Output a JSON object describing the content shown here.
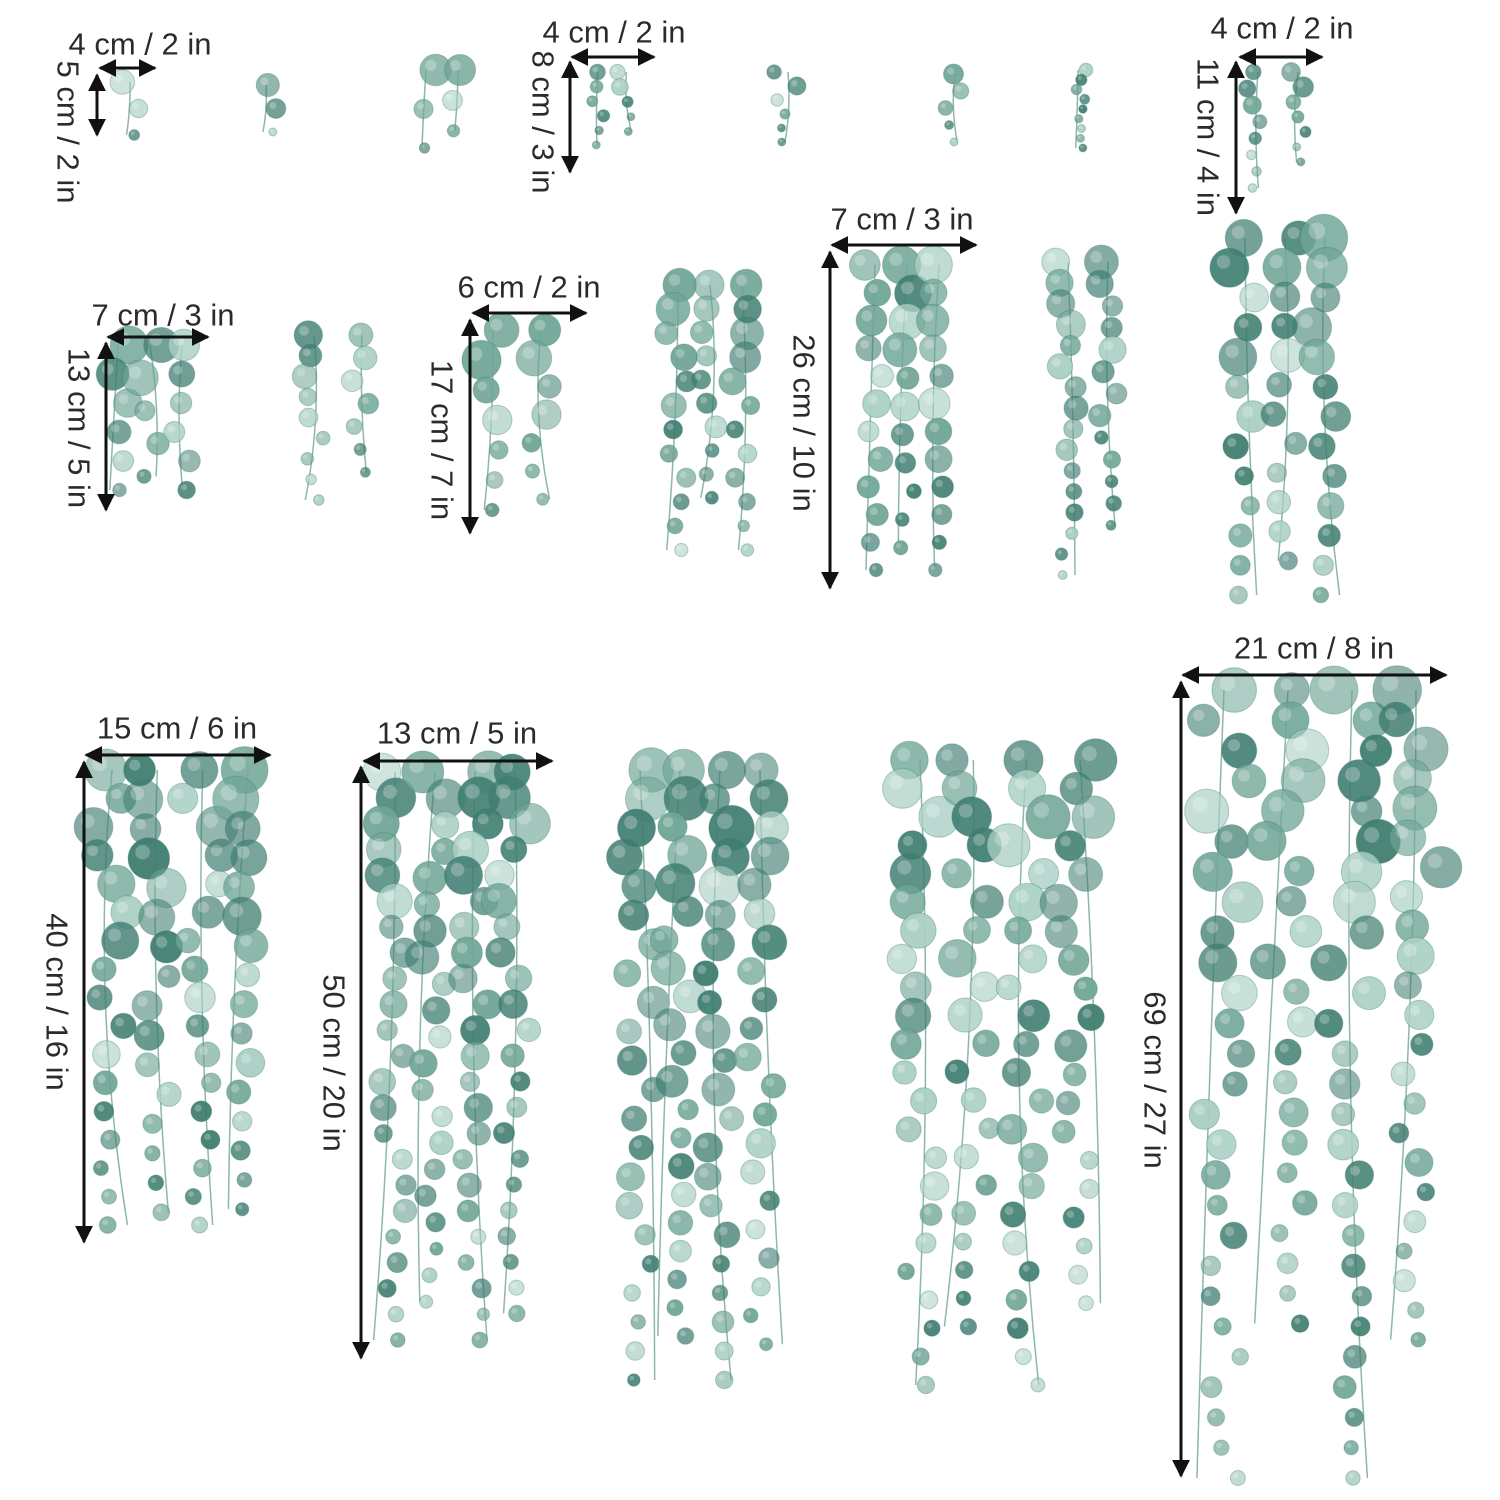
{
  "colors": {
    "arrow": "#111111",
    "leaf_dark": "#3f7d70",
    "leaf_mid": "#6fa596",
    "leaf_light": "#a9cfc3",
    "stem": "#8db8a8"
  },
  "labels": {
    "w4a": "4 cm / 2 in",
    "h5": "5 cm / 2 in",
    "w4b": "4 cm / 2 in",
    "h8": "8 cm / 3 in",
    "w4c": "4 cm / 2 in",
    "h11": "11 cm / 4 in",
    "w7a": "7 cm / 3 in",
    "h13": "13 cm / 5 in",
    "w6": "6 cm / 2 in",
    "h17": "17 cm / 7 in",
    "w7b": "7 cm / 3 in",
    "h26": "26 cm / 10 in",
    "w15": "15 cm / 6 in",
    "h40": "40 cm / 16 in",
    "w13": "13 cm / 5 in",
    "h50": "50 cm / 20 in",
    "w21": "21 cm / 8 in",
    "h69": "69 cm / 27 in"
  }
}
